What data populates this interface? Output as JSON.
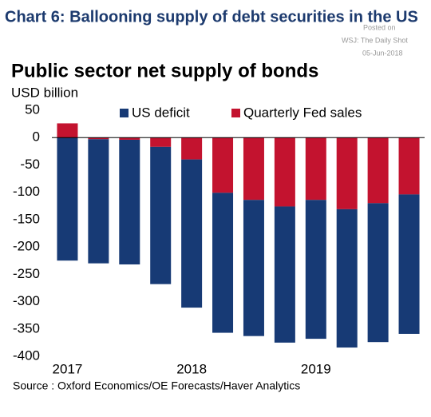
{
  "chart_data": {
    "type": "bar",
    "title": "Chart 6: Ballooning supply of debt securities in the US",
    "posted_label": "Posted on",
    "source_site": "WSJ: The Daily Shot",
    "posted_date": "05-Jun-2018",
    "subtitle": "Public sector net supply of bonds",
    "y_label": "USD billion",
    "source": "Source : Oxford Economics/OE Forecasts/Haver Analytics",
    "stacked": true,
    "categories": [
      "2017",
      null,
      null,
      null,
      "2018",
      null,
      null,
      null,
      "2019",
      null,
      null,
      null
    ],
    "series": [
      {
        "name": "US deficit",
        "color": "#173a75",
        "values": [
          -225,
          -227,
          -228,
          -251,
          -271,
          -256,
          -249,
          -249,
          -254,
          -253,
          -254,
          -255
        ]
      },
      {
        "name": "Quarterly Fed sales",
        "color": "#c3132f",
        "values": [
          26,
          -3,
          -4,
          -17,
          -40,
          -101,
          -114,
          -126,
          -114,
          -131,
          -120,
          -104
        ]
      }
    ],
    "ylim": [
      -400,
      50
    ],
    "yticks": [
      50,
      0,
      -50,
      -100,
      -150,
      -200,
      -250,
      -300,
      -350,
      -400
    ],
    "grid": false
  }
}
